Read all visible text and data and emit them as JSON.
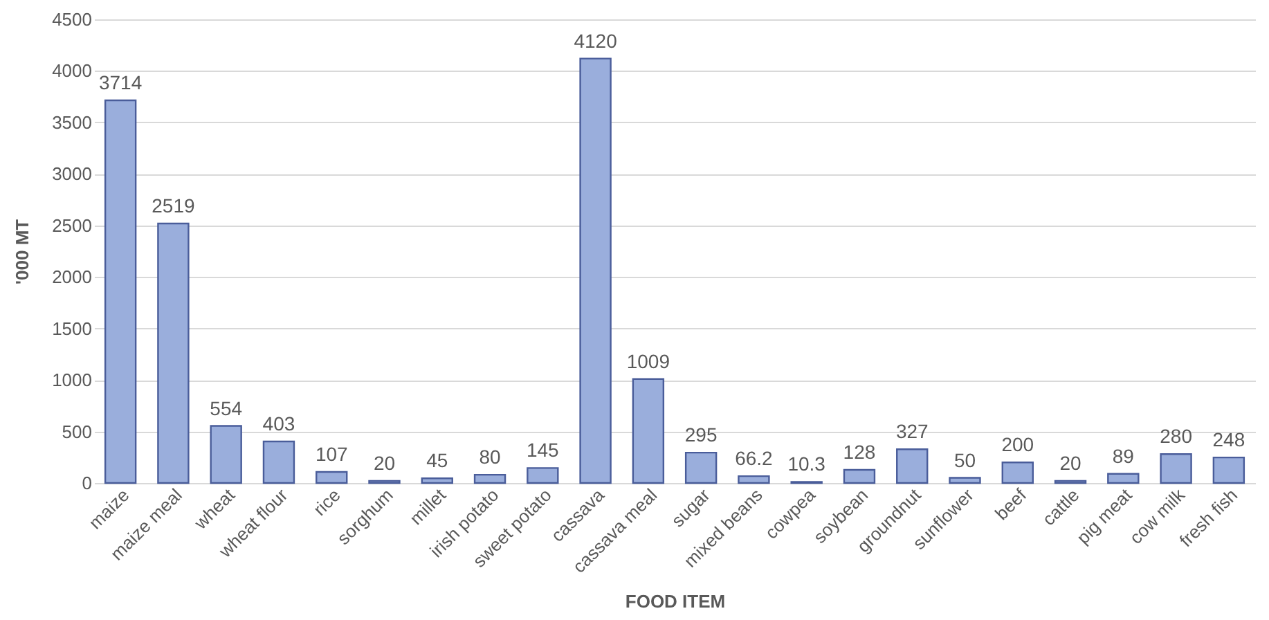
{
  "chart_data": {
    "type": "bar",
    "xlabel": "FOOD ITEM",
    "ylabel": "'000 MT",
    "categories": [
      "maize",
      "maize meal",
      "wheat",
      "wheat flour",
      "rice",
      "sorghum",
      "millet",
      "irish potato",
      "sweet potato",
      "cassava",
      "cassava meal",
      "sugar",
      "mixed beans",
      "cowpea",
      "soybean",
      "groundnut",
      "sunflower",
      "beef",
      "cattle",
      "pig meat",
      "cow milk",
      "fresh fish"
    ],
    "values": [
      3714,
      2519,
      554,
      403,
      107,
      20,
      45,
      80,
      145,
      4120,
      1009,
      295,
      66.2,
      10.3,
      128,
      327,
      50,
      200,
      20,
      89,
      280,
      248
    ],
    "color": "#9aaedc",
    "ylim": [
      0,
      4500
    ],
    "yticks": [
      0,
      500,
      1000,
      1500,
      2000,
      2500,
      3000,
      3500,
      4000,
      4500
    ],
    "grid": "y",
    "data_labels": true
  }
}
